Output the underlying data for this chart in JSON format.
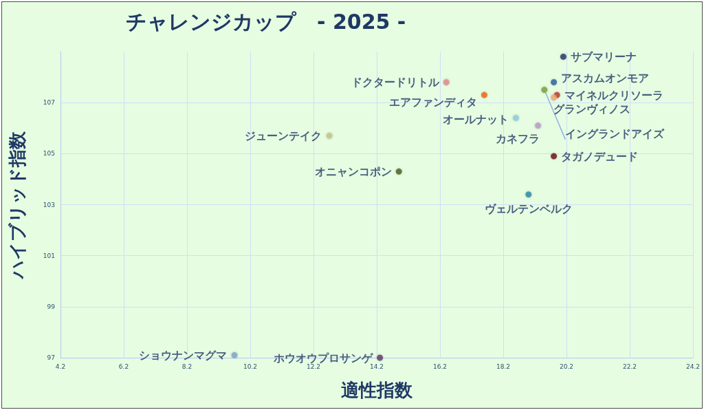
{
  "chart_data": {
    "type": "scatter",
    "title": "チャレンジカップ　- 2025 -",
    "xlabel": "適性指数",
    "ylabel": "ハイブリッド指数",
    "xlim": [
      4.2,
      24.2
    ],
    "xticks": [
      4.2,
      6.2,
      8.2,
      10.2,
      12.2,
      14.2,
      16.2,
      18.2,
      20.2,
      22.2,
      24.2
    ],
    "ylim": [
      97,
      109
    ],
    "yticks": [
      97,
      99,
      101,
      103,
      105,
      107
    ],
    "grid": true,
    "marker": "circle",
    "legend": false,
    "series": [
      {
        "name": "サブマリーナ",
        "color": "#1f3864",
        "x": [
          20.1
        ],
        "values": [
          108.8
        ]
      },
      {
        "name": "アスカムオンモア",
        "color": "#2e5fa0",
        "x": [
          19.8
        ],
        "values": [
          107.8
        ]
      },
      {
        "name": "マイネルクリソーラ",
        "color": "#c0392b",
        "x": [
          19.9
        ],
        "values": [
          107.3
        ]
      },
      {
        "name": "グランヴィノス",
        "color": "#f0a878",
        "x": [
          19.8
        ],
        "values": [
          107.2
        ]
      },
      {
        "name": "イングランドアイズ",
        "color": "#7aa03a",
        "x": [
          19.5
        ],
        "values": [
          107.5
        ]
      },
      {
        "name": "ドクタードリトル",
        "color": "#e08a8a",
        "x": [
          16.4
        ],
        "values": [
          107.8
        ]
      },
      {
        "name": "エアファンディタ",
        "color": "#f06414",
        "x": [
          17.6
        ],
        "values": [
          107.3
        ]
      },
      {
        "name": "オールナット",
        "color": "#8ccce0",
        "x": [
          18.6
        ],
        "values": [
          106.4
        ]
      },
      {
        "name": "カネフラ",
        "color": "#b89cc8",
        "x": [
          19.3
        ],
        "values": [
          106.1
        ]
      },
      {
        "name": "ジューンテイク",
        "color": "#c4c48a",
        "x": [
          12.7
        ],
        "values": [
          105.7
        ]
      },
      {
        "name": "タガノデュード",
        "color": "#6e1418",
        "x": [
          19.8
        ],
        "values": [
          104.9
        ]
      },
      {
        "name": "オニャンコポン",
        "color": "#4e5e1e",
        "x": [
          14.9
        ],
        "values": [
          104.3
        ]
      },
      {
        "name": "ヴェルテンベルク",
        "color": "#2a8aa8",
        "x": [
          19.0
        ],
        "values": [
          103.4
        ]
      },
      {
        "name": "ショウナンマグマ",
        "color": "#7ea4cc",
        "x": [
          9.7
        ],
        "values": [
          97.1
        ]
      },
      {
        "name": "ホウオウプロサンゲ",
        "color": "#5e3c6e",
        "x": [
          14.3
        ],
        "values": [
          97.0
        ]
      }
    ]
  }
}
